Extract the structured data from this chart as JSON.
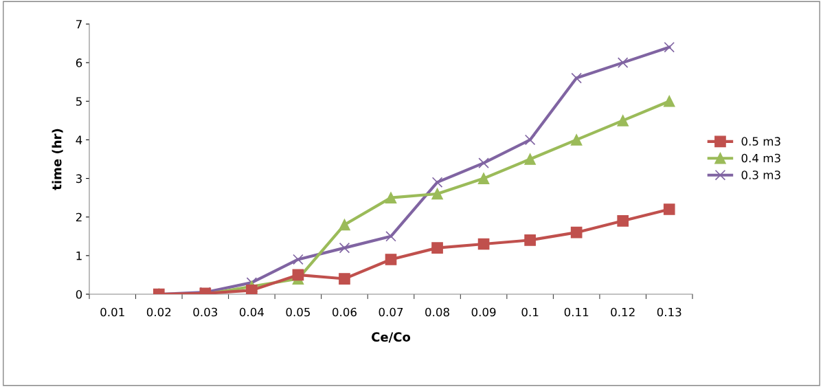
{
  "chart_data": {
    "type": "line",
    "xlabel": "Ce/Co",
    "ylabel": "time (hr)",
    "categories": [
      "0.01",
      "0.02",
      "0.03",
      "0.04",
      "0.05",
      "0.06",
      "0.07",
      "0.08",
      "0.09",
      "0.1",
      "0.11",
      "0.12",
      "0.13"
    ],
    "ylim": [
      0,
      7
    ],
    "yticks": [
      0,
      1,
      2,
      3,
      4,
      5,
      6,
      7
    ],
    "grid": false,
    "legend": "right",
    "series": [
      {
        "name": "0.5 m3",
        "color": "#c0504d",
        "marker": "square",
        "values": [
          null,
          0,
          0.02,
          0.1,
          0.5,
          0.4,
          0.9,
          1.2,
          1.3,
          1.4,
          1.6,
          1.9,
          2.2
        ]
      },
      {
        "name": "0.4 m3",
        "color": "#9bbb59",
        "marker": "triangle",
        "values": [
          null,
          0,
          0,
          0.2,
          0.4,
          1.8,
          2.5,
          2.6,
          3.0,
          3.5,
          4.0,
          4.5,
          5.0
        ]
      },
      {
        "name": "0.3 m3",
        "color": "#8064a2",
        "marker": "cross",
        "values": [
          null,
          0,
          0.05,
          0.3,
          0.9,
          1.2,
          1.5,
          2.9,
          3.4,
          4.0,
          5.6,
          6.0,
          6.4
        ]
      }
    ]
  }
}
